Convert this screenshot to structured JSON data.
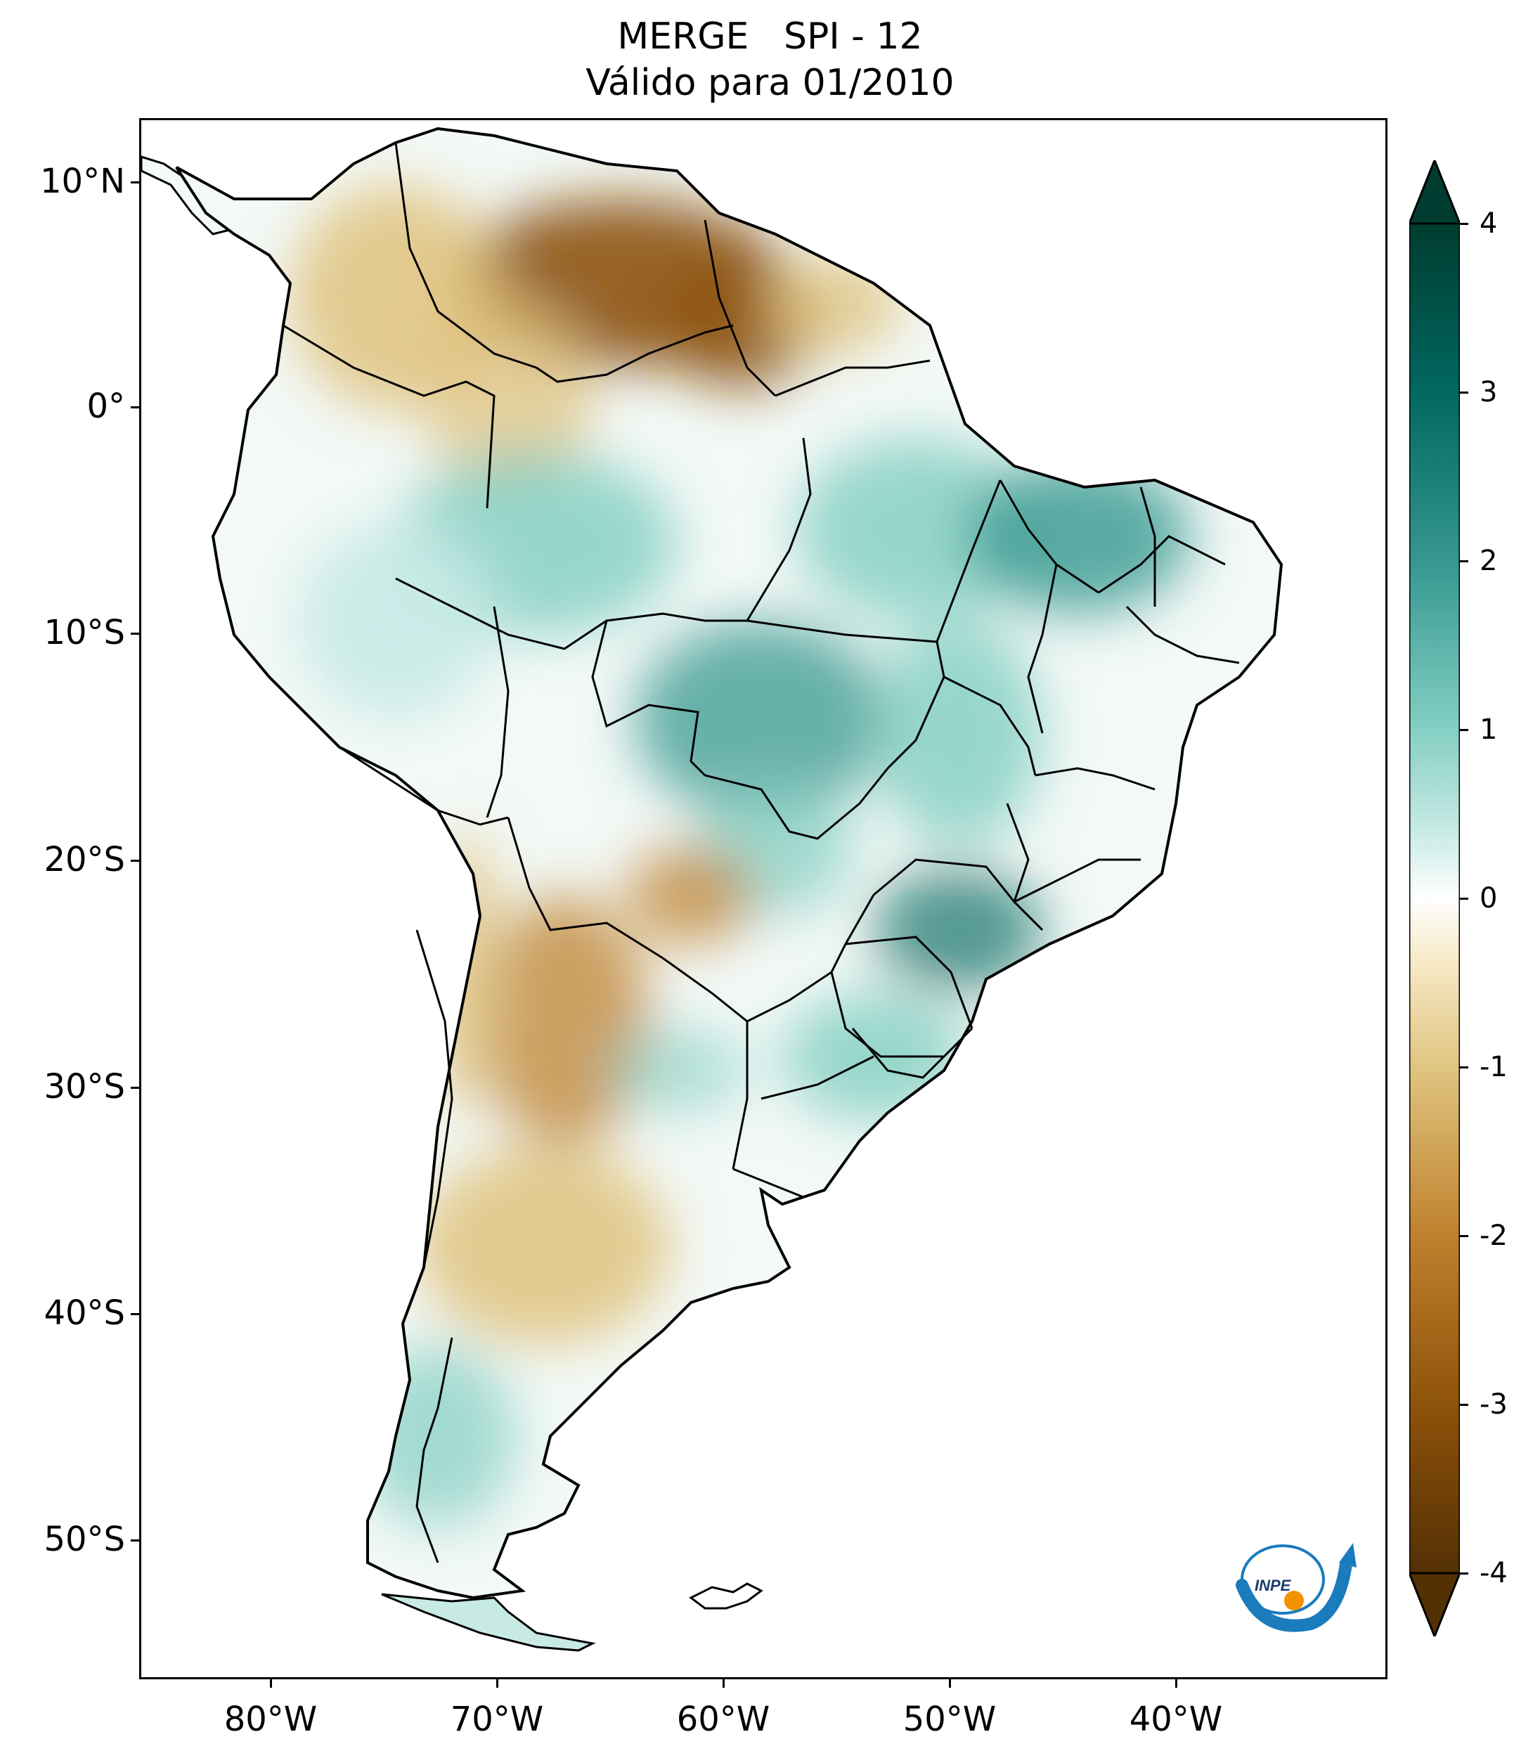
{
  "title": {
    "line1": "MERGE   SPI - 12",
    "line2": "Válido para 01/2010"
  },
  "axes": {
    "lat_labels": [
      "10°N",
      "0°",
      "10°S",
      "20°S",
      "30°S",
      "40°S",
      "50°S"
    ],
    "lon_labels": [
      "80°W",
      "70°W",
      "60°W",
      "50°W",
      "40°W"
    ]
  },
  "colorbar": {
    "labels": [
      "4",
      "3",
      "2",
      "1",
      "0",
      "-1",
      "-2",
      "-3",
      "-4"
    ],
    "min": -4,
    "max": 4,
    "colors": {
      "wet_max": "#003c30",
      "wet_strong": "#01665e",
      "wet_mid": "#35978f",
      "wet_light": "#80cdc1",
      "wet_faint": "#c7eae5",
      "neutral": "#ffffff",
      "dry_faint": "#f6e8c3",
      "dry_light": "#dfc27d",
      "dry_mid": "#bf812d",
      "dry_strong": "#8c510a",
      "dry_max": "#543005"
    }
  },
  "logo": {
    "text": "INPE",
    "accent": "#1a7bbd",
    "orange": "#f39200"
  },
  "map": {
    "land_outline": "#000000",
    "ocean": "#ffffff"
  }
}
